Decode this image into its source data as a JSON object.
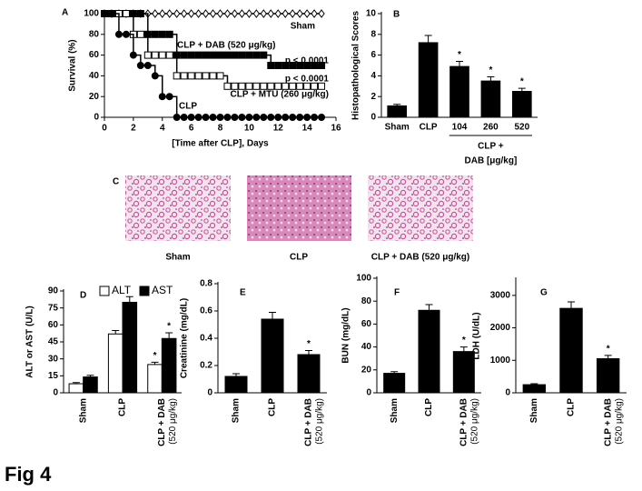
{
  "figure_label": "Fig 4",
  "panel_c": {
    "label": "C",
    "captions": [
      "Sham",
      "CLP",
      "CLP + DAB (520 μg/kg)"
    ]
  },
  "chart_data": [
    {
      "type": "line",
      "label": "A",
      "ylabel": "Survival (%)",
      "xlabel": "[Time after CLP], Days",
      "x": [
        0,
        0.5,
        1,
        1.5,
        2,
        2.5,
        3,
        3.5,
        4,
        4.5,
        5,
        5.5,
        6,
        6.5,
        7,
        7.5,
        8,
        8.5,
        9,
        9.5,
        10,
        10.5,
        11,
        11.5,
        12,
        12.5,
        13,
        13.5,
        14,
        14.5,
        15
      ],
      "xlim": [
        0,
        16
      ],
      "xticks": [
        0,
        2,
        4,
        6,
        8,
        10,
        12,
        14,
        16
      ],
      "ylim": [
        0,
        100
      ],
      "yticks": [
        0,
        20,
        40,
        60,
        80,
        100
      ],
      "series": [
        {
          "name": "Sham",
          "marker": "diamond",
          "filled": false,
          "color": "#000",
          "values": [
            100,
            100,
            100,
            100,
            100,
            100,
            100,
            100,
            100,
            100,
            100,
            100,
            100,
            100,
            100,
            100,
            100,
            100,
            100,
            100,
            100,
            100,
            100,
            100,
            100,
            100,
            100,
            100,
            100,
            100,
            100
          ]
        },
        {
          "name": "CLP + DAB (520 μg/kg)",
          "marker": "square",
          "filled": true,
          "color": "#000",
          "values": [
            100,
            100,
            100,
            100,
            100,
            100,
            80,
            80,
            80,
            80,
            60,
            60,
            60,
            60,
            60,
            60,
            60,
            60,
            60,
            60,
            60,
            60,
            60,
            50,
            50,
            50,
            50,
            50,
            50,
            50,
            50
          ]
        },
        {
          "name": "CLP + MTU (260 μg/kg)",
          "marker": "square",
          "filled": false,
          "color": "#000",
          "values": [
            100,
            100,
            100,
            100,
            80,
            80,
            60,
            60,
            60,
            60,
            40,
            40,
            40,
            40,
            40,
            40,
            40,
            30,
            30,
            30,
            30,
            30,
            30,
            30,
            30,
            30,
            30,
            30,
            30,
            30,
            30
          ]
        },
        {
          "name": "CLP",
          "marker": "circle",
          "filled": true,
          "color": "#000",
          "values": [
            100,
            100,
            80,
            80,
            60,
            50,
            50,
            40,
            20,
            20,
            0,
            0,
            0,
            0,
            0,
            0,
            0,
            0,
            0,
            0,
            0,
            0,
            0,
            0,
            0,
            0,
            0,
            0,
            0,
            0,
            0
          ]
        }
      ],
      "p_values": [
        "p < 0.0001",
        "p < 0.0001"
      ]
    },
    {
      "type": "bar",
      "label": "B",
      "ylabel": "Histopathological Scores",
      "categories": [
        "Sham",
        "CLP",
        "104",
        "260",
        "520"
      ],
      "group_label": [
        "CLP +",
        "DAB [μg/kg]"
      ],
      "ylim": [
        0,
        10
      ],
      "yticks": [
        0,
        2,
        4,
        6,
        8,
        10
      ],
      "significance_label": "*",
      "series": [
        {
          "color": "#000",
          "values": [
            1.1,
            7.2,
            4.9,
            3.5,
            2.5
          ],
          "errors": [
            0.15,
            0.7,
            0.5,
            0.4,
            0.3
          ],
          "significant": [
            false,
            false,
            true,
            true,
            true
          ]
        }
      ]
    },
    {
      "type": "bar",
      "label": "D",
      "ylabel": "ALT or AST (U/L)",
      "categories": [
        "Sham",
        "CLP",
        "CLP + DAB"
      ],
      "dose_label": "(520 μg/kg)",
      "ylim": [
        0,
        90
      ],
      "yticks": [
        0,
        15,
        30,
        45,
        60,
        75,
        90
      ],
      "significance_label": "*",
      "series": [
        {
          "name": "ALT",
          "color": "#fff",
          "values": [
            8,
            52,
            25
          ],
          "errors": [
            1,
            3,
            2
          ],
          "significant": [
            false,
            false,
            true
          ]
        },
        {
          "name": "AST",
          "color": "#000",
          "values": [
            14,
            80,
            48
          ],
          "errors": [
            1.5,
            5,
            5
          ],
          "significant": [
            false,
            false,
            true
          ]
        }
      ]
    },
    {
      "type": "bar",
      "label": "E",
      "ylabel": "Creatinine (mg/dL)",
      "categories": [
        "Sham",
        "CLP",
        "CLP + DAB"
      ],
      "dose_label": "(520 μg/kg)",
      "ylim": [
        0,
        0.8
      ],
      "yticks": [
        0,
        0.2,
        0.4,
        0.6,
        0.8
      ],
      "significance_label": "*",
      "series": [
        {
          "color": "#000",
          "values": [
            0.12,
            0.54,
            0.28
          ],
          "errors": [
            0.02,
            0.05,
            0.03
          ],
          "significant": [
            false,
            false,
            true
          ]
        }
      ]
    },
    {
      "type": "bar",
      "label": "F",
      "ylabel": "BUN (mg/dL)",
      "categories": [
        "Sham",
        "CLP",
        "CLP + DAB"
      ],
      "dose_label": "(520 μg/kg)",
      "ylim": [
        0,
        100
      ],
      "yticks": [
        0,
        20,
        40,
        60,
        80,
        100
      ],
      "significance_label": "*",
      "series": [
        {
          "color": "#000",
          "values": [
            17,
            72,
            36
          ],
          "errors": [
            1.5,
            5,
            4
          ],
          "significant": [
            false,
            false,
            true
          ]
        }
      ]
    },
    {
      "type": "bar",
      "label": "G",
      "ylabel": "LDH (U/dL)",
      "categories": [
        "Sham",
        "CLP",
        "CLP + DAB"
      ],
      "dose_label": "(520 μg/kg)",
      "ylim": [
        0,
        3500
      ],
      "yticks": [
        0,
        1000,
        2000,
        3000
      ],
      "significance_label": "*",
      "series": [
        {
          "color": "#000",
          "values": [
            250,
            2600,
            1050
          ],
          "errors": [
            30,
            200,
            100
          ],
          "significant": [
            false,
            false,
            true
          ]
        }
      ]
    }
  ]
}
